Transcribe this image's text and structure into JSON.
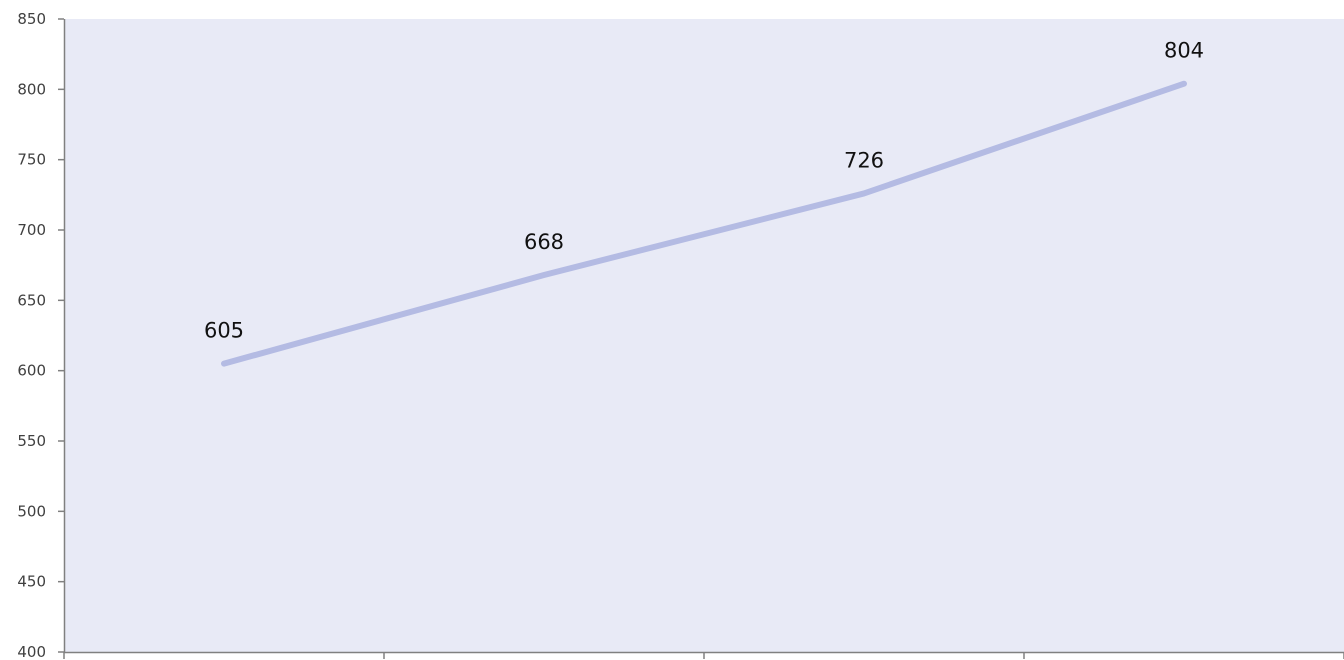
{
  "chart_data": {
    "type": "line",
    "title": "",
    "xlabel": "",
    "ylabel": "",
    "ylim": [
      400,
      850
    ],
    "yticks": [
      400,
      450,
      500,
      550,
      600,
      650,
      700,
      750,
      800,
      850
    ],
    "y_tick_labels": [
      "400",
      "450",
      "500",
      "550",
      "600",
      "650",
      "700",
      "750",
      "800",
      "850"
    ],
    "categories": [
      "",
      "",
      "",
      ""
    ],
    "series": [
      {
        "values": [
          605,
          668,
          726,
          804
        ],
        "data_labels": [
          "605",
          "668",
          "726",
          "804"
        ],
        "color": "#b4bbe3"
      }
    ],
    "grid": false,
    "legend": "none",
    "plot_background": "#e8eaf6",
    "axis_color": "#808080"
  }
}
